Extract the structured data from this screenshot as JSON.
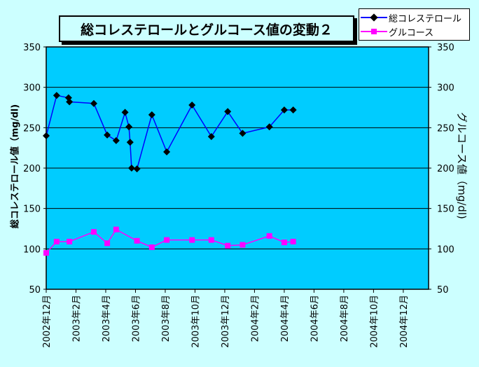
{
  "chart_data": {
    "type": "line",
    "title": "総コレステロールとグルコース値の変動２",
    "ylabel_left": "総コレステロール値（mg/dl)",
    "ylabel_right": "グルコース値（mg/dl)",
    "ylim": [
      50,
      350
    ],
    "yticks": [
      "50",
      "100",
      "150",
      "200",
      "250",
      "300",
      "350"
    ],
    "xticks": [
      "2002年12月",
      "2003年2月",
      "2003年4月",
      "2003年6月",
      "2003年8月",
      "2003年10月",
      "2003年12月",
      "2004年2月",
      "2004年4月",
      "2004年6月",
      "2004年8月",
      "2004年10月",
      "2004年12月"
    ],
    "grid": true,
    "legend_position": "top-right",
    "series": [
      {
        "name": "総コレステロール",
        "color": "#0000ff",
        "marker": "diamond",
        "marker_color": "#000000",
        "points": [
          {
            "x": 0.0,
            "y": 240
          },
          {
            "x": 0.35,
            "y": 290
          },
          {
            "x": 0.75,
            "y": 287
          },
          {
            "x": 0.78,
            "y": 282
          },
          {
            "x": 1.6,
            "y": 280
          },
          {
            "x": 2.05,
            "y": 241
          },
          {
            "x": 2.35,
            "y": 234
          },
          {
            "x": 2.65,
            "y": 269
          },
          {
            "x": 2.78,
            "y": 251
          },
          {
            "x": 2.82,
            "y": 232
          },
          {
            "x": 2.87,
            "y": 200
          },
          {
            "x": 3.05,
            "y": 199
          },
          {
            "x": 3.55,
            "y": 266
          },
          {
            "x": 4.05,
            "y": 220
          },
          {
            "x": 4.9,
            "y": 278
          },
          {
            "x": 5.55,
            "y": 239
          },
          {
            "x": 6.1,
            "y": 270
          },
          {
            "x": 6.6,
            "y": 243
          },
          {
            "x": 7.5,
            "y": 251
          },
          {
            "x": 8.0,
            "y": 272
          },
          {
            "x": 8.3,
            "y": 272
          }
        ]
      },
      {
        "name": "グルコース",
        "color": "#ff00ff",
        "marker": "square",
        "marker_color": "#ff00ff",
        "points": [
          {
            "x": 0.0,
            "y": 95
          },
          {
            "x": 0.35,
            "y": 109
          },
          {
            "x": 0.78,
            "y": 109
          },
          {
            "x": 1.6,
            "y": 121
          },
          {
            "x": 2.05,
            "y": 107
          },
          {
            "x": 2.35,
            "y": 124
          },
          {
            "x": 3.05,
            "y": 110
          },
          {
            "x": 3.55,
            "y": 102
          },
          {
            "x": 4.05,
            "y": 111
          },
          {
            "x": 4.9,
            "y": 111
          },
          {
            "x": 5.55,
            "y": 111
          },
          {
            "x": 6.1,
            "y": 104
          },
          {
            "x": 6.6,
            "y": 105
          },
          {
            "x": 7.5,
            "y": 116
          },
          {
            "x": 8.0,
            "y": 108
          },
          {
            "x": 8.3,
            "y": 109
          }
        ]
      }
    ]
  }
}
